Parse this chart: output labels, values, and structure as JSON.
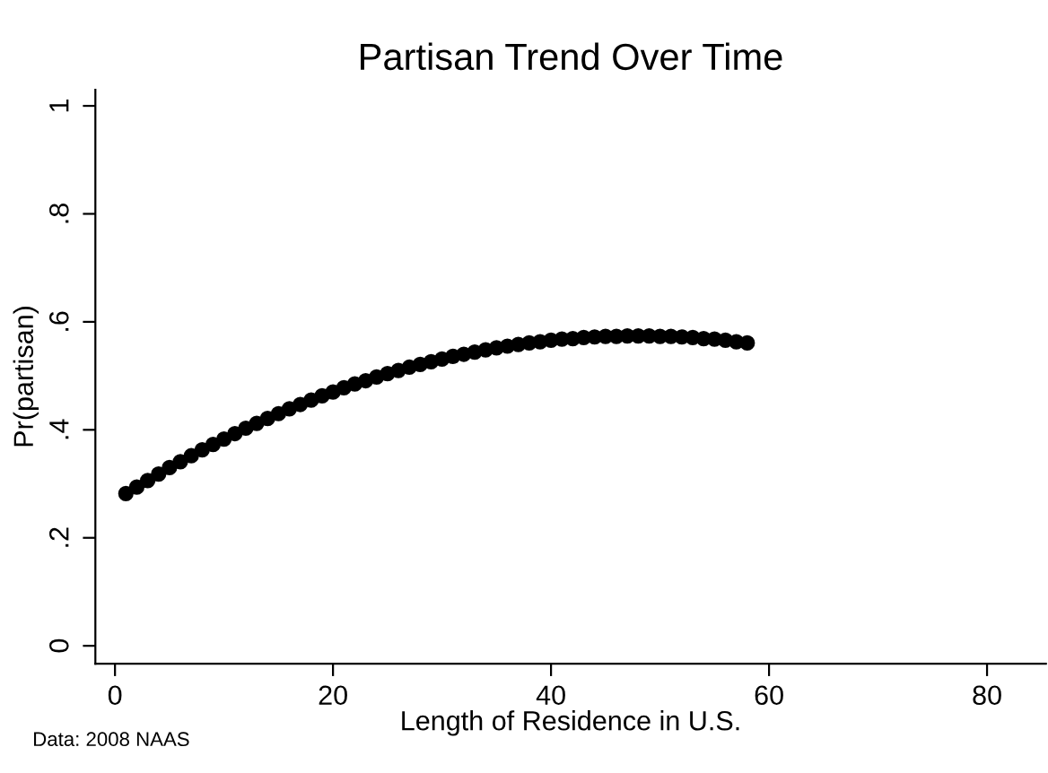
{
  "chart_data": {
    "type": "scatter",
    "title": "Partisan Trend Over Time",
    "xlabel": "Length of Residence in U.S.",
    "ylabel": "Pr(partisan)",
    "annotations": [
      "Data: 2008 NAAS"
    ],
    "x": [
      1,
      2,
      3,
      4,
      5,
      6,
      7,
      8,
      9,
      10,
      11,
      12,
      13,
      14,
      15,
      16,
      17,
      18,
      19,
      20,
      21,
      22,
      23,
      24,
      25,
      26,
      27,
      28,
      29,
      30,
      31,
      32,
      33,
      34,
      35,
      36,
      37,
      38,
      39,
      40,
      41,
      42,
      43,
      44,
      45,
      46,
      47,
      48,
      49,
      50,
      51,
      52,
      53,
      54,
      55,
      56,
      57,
      58
    ],
    "values": [
      0.282,
      0.294,
      0.306,
      0.318,
      0.33,
      0.341,
      0.352,
      0.363,
      0.373,
      0.383,
      0.393,
      0.403,
      0.412,
      0.421,
      0.43,
      0.439,
      0.447,
      0.455,
      0.463,
      0.47,
      0.478,
      0.485,
      0.491,
      0.498,
      0.504,
      0.51,
      0.516,
      0.521,
      0.526,
      0.531,
      0.536,
      0.54,
      0.544,
      0.548,
      0.552,
      0.555,
      0.558,
      0.561,
      0.563,
      0.566,
      0.568,
      0.569,
      0.571,
      0.572,
      0.573,
      0.573,
      0.574,
      0.574,
      0.574,
      0.573,
      0.573,
      0.572,
      0.571,
      0.569,
      0.568,
      0.566,
      0.563,
      0.561
    ],
    "color": "#000000",
    "marker": "circle",
    "grid": false,
    "legend": false,
    "xlim": [
      -1.8,
      85.4
    ],
    "xticks": [
      0,
      20,
      40,
      60,
      80
    ],
    "ylim": [
      -0.033,
      1.03
    ],
    "yticks": [
      {
        "value": 0,
        "label": "0"
      },
      {
        "value": 0.2,
        "label": ".2"
      },
      {
        "value": 0.4,
        "label": ".4"
      },
      {
        "value": 0.6,
        "label": ".6"
      },
      {
        "value": 0.8,
        "label": ".8"
      },
      {
        "value": 1,
        "label": "1"
      }
    ]
  }
}
